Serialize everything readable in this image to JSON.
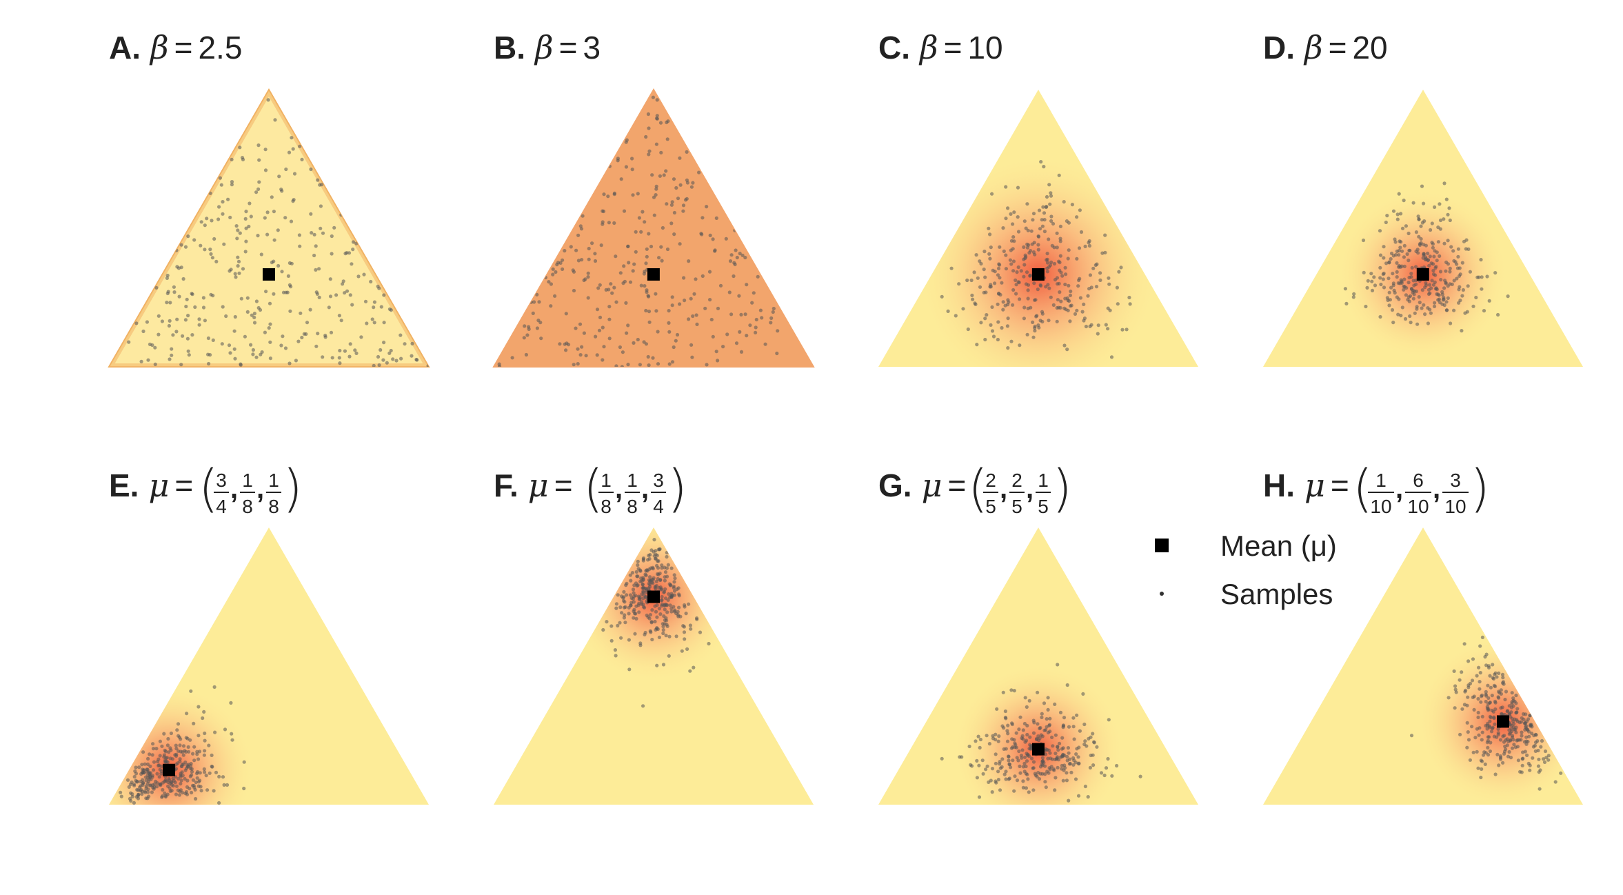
{
  "panels": [
    {
      "letter": "A.",
      "symbol": "β",
      "value": "2.5",
      "kind": "beta",
      "fill": "#fde9a0",
      "edge": "#f0b060",
      "mu": [
        0.3333,
        0.3333,
        0.3333
      ],
      "conc": 2.5
    },
    {
      "letter": "B.",
      "symbol": "β",
      "value": "3",
      "kind": "beta",
      "fill": "#f2a56c",
      "edge": "#f2a56c",
      "mu": [
        0.3333,
        0.3333,
        0.3333
      ],
      "conc": 3
    },
    {
      "letter": "C.",
      "symbol": "β",
      "value": "10",
      "kind": "beta",
      "fill": "#fdec98",
      "mu": [
        0.3333,
        0.3333,
        0.3333
      ],
      "conc": 10
    },
    {
      "letter": "D.",
      "symbol": "β",
      "value": "20",
      "kind": "beta",
      "fill": "#fdec98",
      "mu": [
        0.3333,
        0.3333,
        0.3333
      ],
      "conc": 20
    },
    {
      "letter": "E.",
      "symbol": "μ",
      "kind": "mu",
      "fill": "#fdec98",
      "mu": [
        0.75,
        0.125,
        0.125
      ],
      "conc": 20,
      "fracs": [
        {
          "num": "3",
          "den": "4"
        },
        {
          "num": "1",
          "den": "8"
        },
        {
          "num": "1",
          "den": "8"
        }
      ]
    },
    {
      "letter": "F.",
      "symbol": "μ",
      "kind": "mu",
      "fill": "#fdec98",
      "mu": [
        0.125,
        0.125,
        0.75
      ],
      "conc": 20,
      "fracs": [
        {
          "num": "1",
          "den": "8"
        },
        {
          "num": "1",
          "den": "8"
        },
        {
          "num": "3",
          "den": "4"
        }
      ]
    },
    {
      "letter": "G.",
      "symbol": "μ",
      "kind": "mu",
      "fill": "#fdec98",
      "mu": [
        0.4,
        0.4,
        0.2
      ],
      "conc": 20,
      "fracs": [
        {
          "num": "2",
          "den": "5"
        },
        {
          "num": "2",
          "den": "5"
        },
        {
          "num": "1",
          "den": "5"
        }
      ]
    },
    {
      "letter": "H.",
      "symbol": "μ",
      "kind": "mu",
      "fill": "#fdec98",
      "mu": [
        0.1,
        0.6,
        0.3
      ],
      "conc": 20,
      "fracs": [
        {
          "num": "1",
          "den": "10"
        },
        {
          "num": "6",
          "den": "10"
        },
        {
          "num": "3",
          "den": "10"
        }
      ]
    }
  ],
  "legend": {
    "mean_label": "Mean (μ)",
    "samples_label": "Samples"
  },
  "colors": {
    "density_high": "#f0553a",
    "density_mid": "#f8a070",
    "background_fill": "#fdec98",
    "sample_dot": "#555555",
    "mean_marker": "#000000"
  },
  "samples_per_panel": 300
}
